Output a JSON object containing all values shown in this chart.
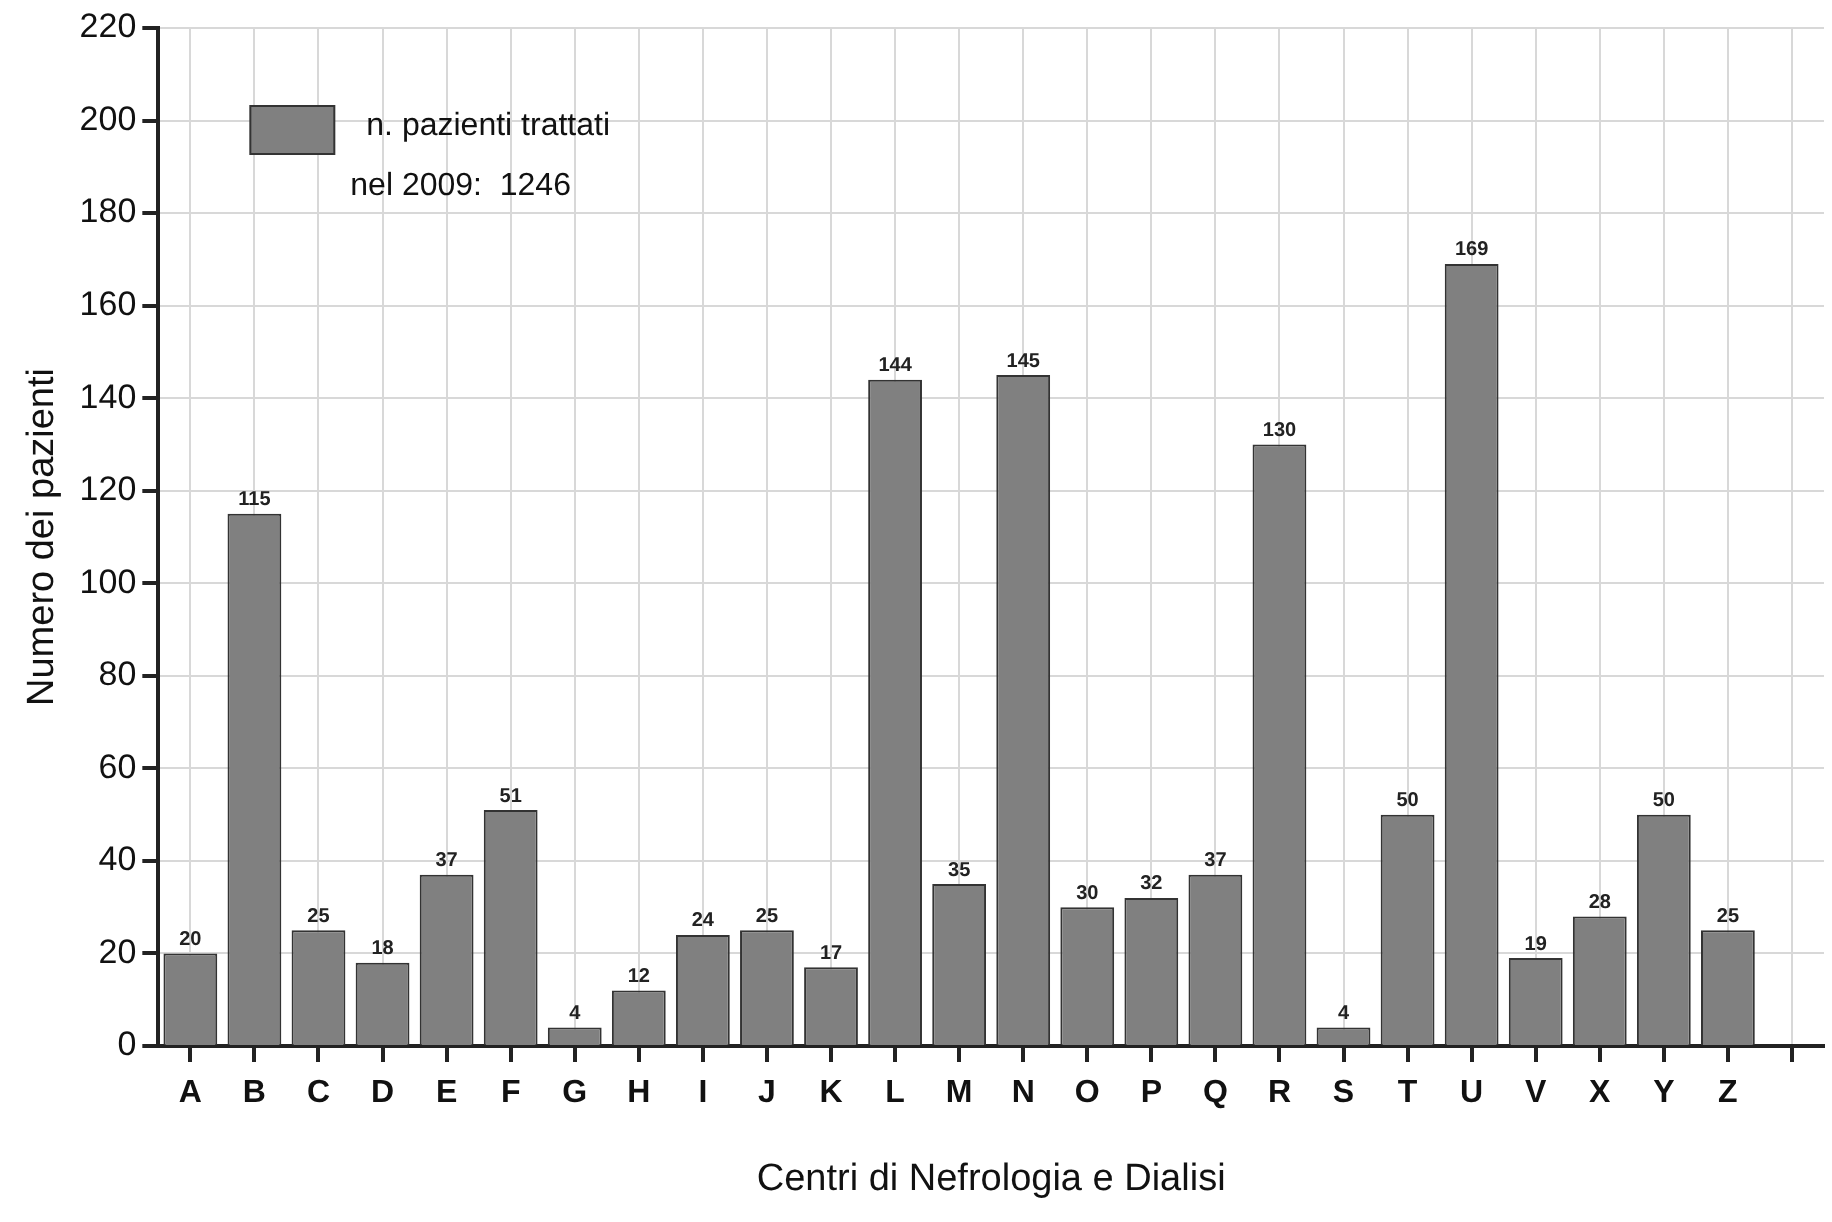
{
  "chart_data": {
    "type": "bar",
    "xlabel": "Centri di Nefrologia e Dialisi",
    "ylabel": "Numero dei pazienti",
    "categories": [
      "A",
      "B",
      "C",
      "D",
      "E",
      "F",
      "G",
      "H",
      "I",
      "J",
      "K",
      "L",
      "M",
      "N",
      "O",
      "P",
      "Q",
      "R",
      "S",
      "T",
      "U",
      "V",
      "X",
      "Y",
      "Z",
      null
    ],
    "series": [
      {
        "name": "n. pazienti trattati\nnel 2009:  1246",
        "color": "#808080",
        "values": [
          20,
          115,
          25,
          18,
          37,
          51,
          4,
          12,
          24,
          25,
          17,
          144,
          35,
          145,
          30,
          32,
          37,
          130,
          4,
          50,
          169,
          19,
          28,
          50,
          25,
          null
        ]
      }
    ],
    "data_labels": true,
    "ylim": [
      0,
      220
    ],
    "yticks": [
      0,
      20,
      40,
      60,
      80,
      100,
      120,
      140,
      160,
      180,
      200,
      220
    ],
    "grid": true,
    "legend": "top left"
  }
}
